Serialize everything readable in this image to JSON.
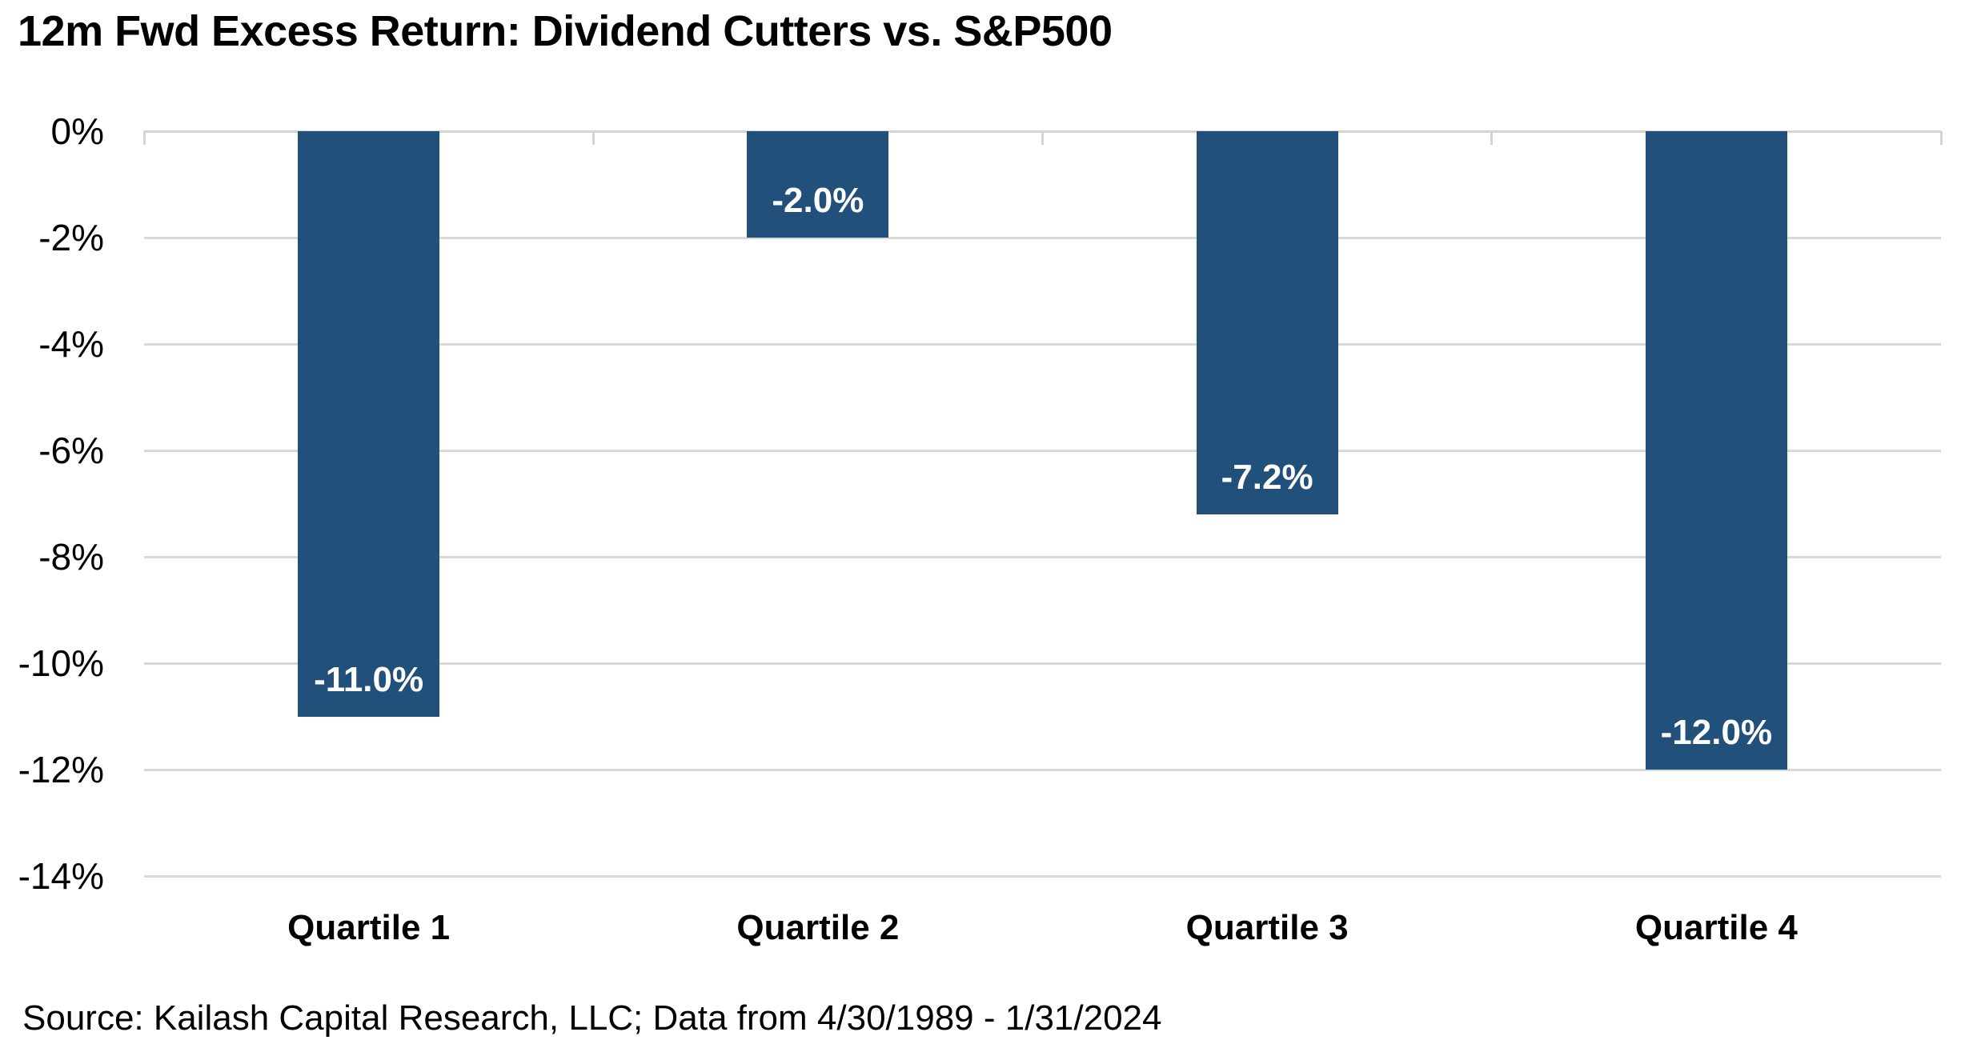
{
  "title": "12m Fwd Excess Return: Dividend Cutters vs. S&P500",
  "source": "Source: Kailash Capital Research, LLC; Data from 4/30/1989 - 1/31/2024",
  "colors": {
    "bar": "#21507B",
    "gridline": "#D9D9D9",
    "axis": "#D4D4D4",
    "bar_label": "#FFFFFF",
    "text": "#000000"
  },
  "chart_data": {
    "type": "bar",
    "title": "12m Fwd Excess Return: Dividend Cutters vs. S&P500",
    "categories": [
      "Quartile 1",
      "Quartile 2",
      "Quartile 3",
      "Quartile 4"
    ],
    "values": [
      -11.0,
      -2.0,
      -7.2,
      -12.0
    ],
    "data_labels": [
      "-11.0%",
      "-2.0%",
      "-7.2%",
      "-12.0%"
    ],
    "xlabel": "",
    "ylabel": "",
    "ylim": [
      -14,
      0
    ],
    "yticks": [
      0,
      -2,
      -4,
      -6,
      -8,
      -10,
      -12,
      -14
    ],
    "ytick_labels": [
      "0%",
      "-2%",
      "-4%",
      "-6%",
      "-8%",
      "-10%",
      "-12%",
      "-14%"
    ],
    "grid": true,
    "legend": false,
    "bar_label_position": "inside-end"
  }
}
